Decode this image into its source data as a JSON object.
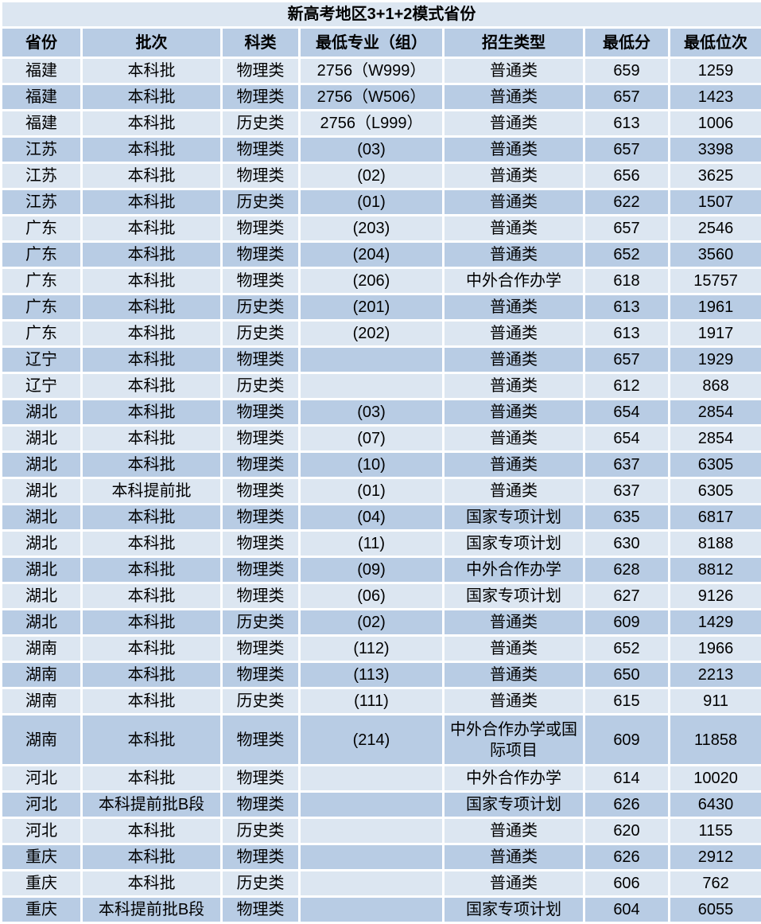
{
  "title": "新高考地区3+1+2模式省份",
  "colors": {
    "title_bg": "#dce6f1",
    "header_bg": "#b8cce4",
    "row_light": "#dce6f1",
    "row_dark": "#b8cce4",
    "grid": "#ffffff",
    "text": "#000000"
  },
  "table": {
    "columns": [
      {
        "key": "province",
        "label": "省份"
      },
      {
        "key": "batch",
        "label": "批次"
      },
      {
        "key": "subject",
        "label": "科类"
      },
      {
        "key": "major_group",
        "label": "最低专业（组）"
      },
      {
        "key": "admission_type",
        "label": "招生类型"
      },
      {
        "key": "min_score",
        "label": "最低分"
      },
      {
        "key": "min_rank",
        "label": "最低位次"
      }
    ],
    "rows": [
      {
        "province": "福建",
        "batch": "本科批",
        "subject": "物理类",
        "major_group": "2756（W999）",
        "admission_type": "普通类",
        "min_score": 659,
        "min_rank": 1259
      },
      {
        "province": "福建",
        "batch": "本科批",
        "subject": "物理类",
        "major_group": "2756（W506）",
        "admission_type": "普通类",
        "min_score": 657,
        "min_rank": 1423
      },
      {
        "province": "福建",
        "batch": "本科批",
        "subject": "历史类",
        "major_group": "2756（L999）",
        "admission_type": "普通类",
        "min_score": 613,
        "min_rank": 1006
      },
      {
        "province": "江苏",
        "batch": "本科批",
        "subject": "物理类",
        "major_group": "(03)",
        "admission_type": "普通类",
        "min_score": 657,
        "min_rank": 3398
      },
      {
        "province": "江苏",
        "batch": "本科批",
        "subject": "物理类",
        "major_group": "(02)",
        "admission_type": "普通类",
        "min_score": 656,
        "min_rank": 3625
      },
      {
        "province": "江苏",
        "batch": "本科批",
        "subject": "历史类",
        "major_group": "(01)",
        "admission_type": "普通类",
        "min_score": 622,
        "min_rank": 1507
      },
      {
        "province": "广东",
        "batch": "本科批",
        "subject": "物理类",
        "major_group": "(203)",
        "admission_type": "普通类",
        "min_score": 657,
        "min_rank": 2546
      },
      {
        "province": "广东",
        "batch": "本科批",
        "subject": "物理类",
        "major_group": "(204)",
        "admission_type": "普通类",
        "min_score": 652,
        "min_rank": 3560
      },
      {
        "province": "广东",
        "batch": "本科批",
        "subject": "物理类",
        "major_group": "(206)",
        "admission_type": "中外合作办学",
        "min_score": 618,
        "min_rank": 15757
      },
      {
        "province": "广东",
        "batch": "本科批",
        "subject": "历史类",
        "major_group": "(201)",
        "admission_type": "普通类",
        "min_score": 613,
        "min_rank": 1961
      },
      {
        "province": "广东",
        "batch": "本科批",
        "subject": "历史类",
        "major_group": "(202)",
        "admission_type": "普通类",
        "min_score": 613,
        "min_rank": 1917
      },
      {
        "province": "辽宁",
        "batch": "本科批",
        "subject": "物理类",
        "major_group": "",
        "admission_type": "普通类",
        "min_score": 657,
        "min_rank": 1929
      },
      {
        "province": "辽宁",
        "batch": "本科批",
        "subject": "历史类",
        "major_group": "",
        "admission_type": "普通类",
        "min_score": 612,
        "min_rank": 868
      },
      {
        "province": "湖北",
        "batch": "本科批",
        "subject": "物理类",
        "major_group": "(03)",
        "admission_type": "普通类",
        "min_score": 654,
        "min_rank": 2854
      },
      {
        "province": "湖北",
        "batch": "本科批",
        "subject": "物理类",
        "major_group": "(07)",
        "admission_type": "普通类",
        "min_score": 654,
        "min_rank": 2854
      },
      {
        "province": "湖北",
        "batch": "本科批",
        "subject": "物理类",
        "major_group": "(10)",
        "admission_type": "普通类",
        "min_score": 637,
        "min_rank": 6305
      },
      {
        "province": "湖北",
        "batch": "本科提前批",
        "subject": "物理类",
        "major_group": "(01)",
        "admission_type": "普通类",
        "min_score": 637,
        "min_rank": 6305
      },
      {
        "province": "湖北",
        "batch": "本科批",
        "subject": "物理类",
        "major_group": "(04)",
        "admission_type": "国家专项计划",
        "min_score": 635,
        "min_rank": 6817
      },
      {
        "province": "湖北",
        "batch": "本科批",
        "subject": "物理类",
        "major_group": "(11)",
        "admission_type": "国家专项计划",
        "min_score": 630,
        "min_rank": 8188
      },
      {
        "province": "湖北",
        "batch": "本科批",
        "subject": "物理类",
        "major_group": "(09)",
        "admission_type": "中外合作办学",
        "min_score": 628,
        "min_rank": 8812
      },
      {
        "province": "湖北",
        "batch": "本科批",
        "subject": "物理类",
        "major_group": "(06)",
        "admission_type": "国家专项计划",
        "min_score": 627,
        "min_rank": 9126
      },
      {
        "province": "湖北",
        "batch": "本科批",
        "subject": "历史类",
        "major_group": "(02)",
        "admission_type": "普通类",
        "min_score": 609,
        "min_rank": 1429
      },
      {
        "province": "湖南",
        "batch": "本科批",
        "subject": "物理类",
        "major_group": "(112)",
        "admission_type": "普通类",
        "min_score": 652,
        "min_rank": 1966
      },
      {
        "province": "湖南",
        "batch": "本科批",
        "subject": "物理类",
        "major_group": "(113)",
        "admission_type": "普通类",
        "min_score": 650,
        "min_rank": 2213
      },
      {
        "province": "湖南",
        "batch": "本科批",
        "subject": "历史类",
        "major_group": "(111)",
        "admission_type": "普通类",
        "min_score": 615,
        "min_rank": 911
      },
      {
        "province": "湖南",
        "batch": "本科批",
        "subject": "物理类",
        "major_group": "(214)",
        "admission_type": "中外合作办学或国际项目",
        "min_score": 609,
        "min_rank": 11858,
        "tall": true
      },
      {
        "province": "河北",
        "batch": "本科批",
        "subject": "物理类",
        "major_group": "",
        "admission_type": "中外合作办学",
        "min_score": 614,
        "min_rank": 10020
      },
      {
        "province": "河北",
        "batch": "本科提前批B段",
        "subject": "物理类",
        "major_group": "",
        "admission_type": "国家专项计划",
        "min_score": 626,
        "min_rank": 6430
      },
      {
        "province": "河北",
        "batch": "本科批",
        "subject": "历史类",
        "major_group": "",
        "admission_type": "普通类",
        "min_score": 620,
        "min_rank": 1155
      },
      {
        "province": "重庆",
        "batch": "本科批",
        "subject": "物理类",
        "major_group": "",
        "admission_type": "普通类",
        "min_score": 626,
        "min_rank": 2912
      },
      {
        "province": "重庆",
        "batch": "本科批",
        "subject": "历史类",
        "major_group": "",
        "admission_type": "普通类",
        "min_score": 606,
        "min_rank": 762
      },
      {
        "province": "重庆",
        "batch": "本科提前批B段",
        "subject": "物理类",
        "major_group": "",
        "admission_type": "国家专项计划",
        "min_score": 604,
        "min_rank": 6055
      }
    ]
  }
}
